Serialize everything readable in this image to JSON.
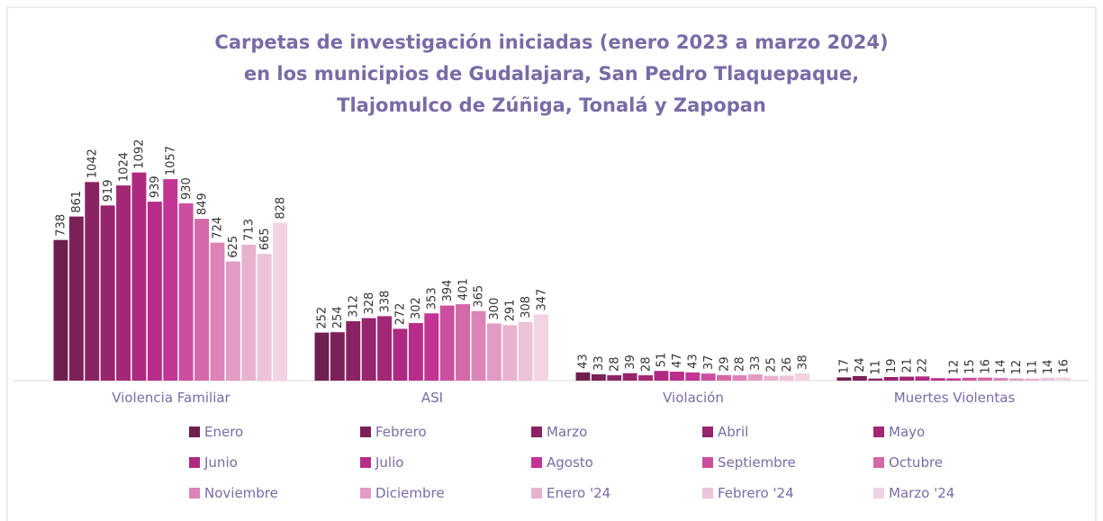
{
  "chart_data": {
    "type": "bar",
    "title": "Carpetas de investigación iniciadas (enero 2023 a marzo 2024)\nen los municipios de Gudalajara, San Pedro Tlaquepaque,\nTlajomulco de Zúñiga, Tonalá y Zapopan",
    "categories": [
      "Violencia Familiar",
      "ASI",
      "Violación",
      "Muertes Violentas"
    ],
    "ylim": [
      0,
      1100
    ],
    "legend": "bottom",
    "series": [
      {
        "name": "Enero",
        "color": "#6e1f4e",
        "values": [
          738,
          252,
          43,
          17
        ]
      },
      {
        "name": "Febrero",
        "color": "#7c2158",
        "values": [
          861,
          254,
          33,
          24
        ]
      },
      {
        "name": "Marzo",
        "color": "#8a2363",
        "values": [
          1042,
          312,
          28,
          11
        ]
      },
      {
        "name": "Abril",
        "color": "#96256c",
        "values": [
          919,
          328,
          39,
          19
        ]
      },
      {
        "name": "Mayo",
        "color": "#a22775",
        "values": [
          1024,
          338,
          28,
          21
        ]
      },
      {
        "name": "Junio",
        "color": "#ae2a80",
        "values": [
          1092,
          272,
          51,
          22
        ]
      },
      {
        "name": "Julio",
        "color": "#b92d8a",
        "values": [
          939,
          302,
          47,
          13
        ],
        "value_labels": [
          "939",
          "302",
          "47",
          null
        ]
      },
      {
        "name": "Agosto",
        "color": "#c33495",
        "values": [
          1057,
          353,
          43,
          12
        ]
      },
      {
        "name": "Septiembre",
        "color": "#cc4f9f",
        "values": [
          930,
          394,
          37,
          15
        ]
      },
      {
        "name": "Octubre",
        "color": "#d468a9",
        "values": [
          849,
          401,
          29,
          16
        ]
      },
      {
        "name": "Noviembre",
        "color": "#dc84b7",
        "values": [
          724,
          365,
          28,
          14
        ]
      },
      {
        "name": "Diciembre",
        "color": "#e29cc3",
        "values": [
          625,
          300,
          33,
          12
        ]
      },
      {
        "name": "Enero '24",
        "color": "#e8b2cf",
        "values": [
          713,
          291,
          25,
          11
        ]
      },
      {
        "name": "Febrero '24",
        "color": "#edc3d9",
        "values": [
          665,
          308,
          26,
          14
        ]
      },
      {
        "name": "Marzo '24",
        "color": "#f2d3e3",
        "values": [
          828,
          347,
          38,
          16
        ]
      }
    ]
  }
}
